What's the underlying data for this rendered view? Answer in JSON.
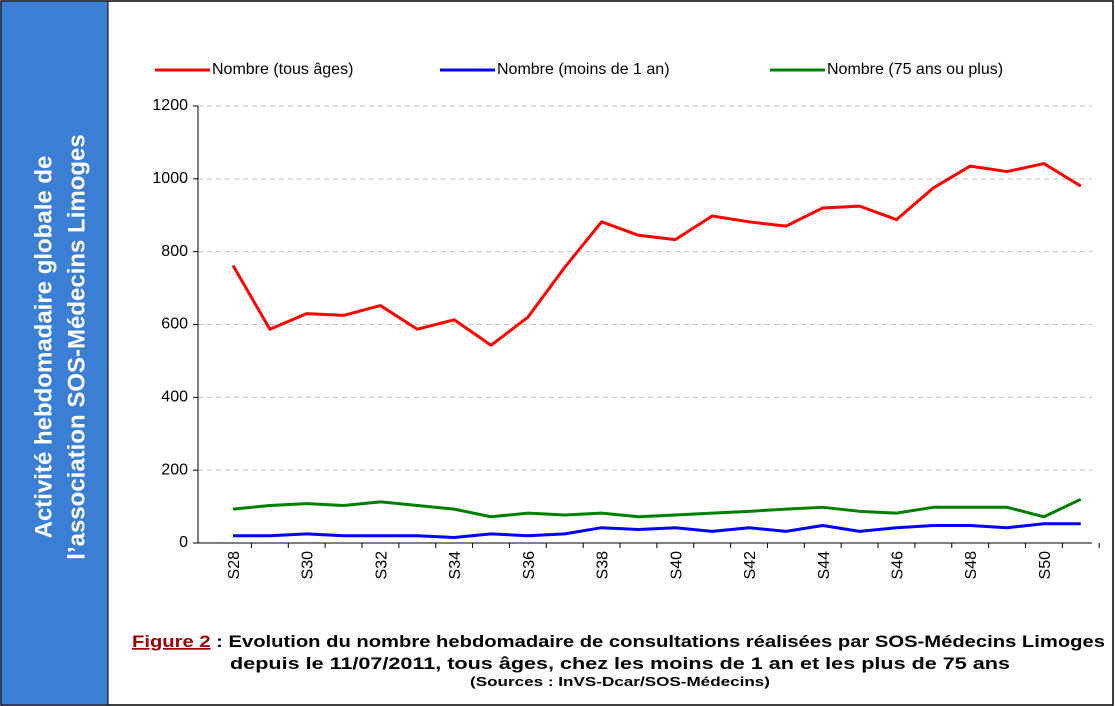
{
  "sidebar": {
    "lines": [
      "Activité hebdomadaire globale de",
      "l’association SOS-Médecins Limoges"
    ]
  },
  "chart_data": {
    "type": "line",
    "categories": [
      "S28",
      null,
      "S30",
      null,
      "S32",
      null,
      "S34",
      null,
      "S36",
      null,
      "S38",
      null,
      "S40",
      null,
      "S42",
      null,
      "S44",
      null,
      "S46",
      null,
      "S48",
      null,
      "S50",
      null
    ],
    "series": [
      {
        "name": "Nombre (tous âges)",
        "color": "#ff0000",
        "values": [
          762,
          587,
          630,
          625,
          652,
          587,
          613,
          543,
          620,
          757,
          882,
          845,
          833,
          898,
          882,
          870,
          920,
          925,
          888,
          975,
          1035,
          1020,
          1042,
          980
        ]
      },
      {
        "name": "Nombre (moins de 1 an)",
        "color": "#0000ff",
        "values": [
          20,
          20,
          25,
          20,
          20,
          20,
          15,
          25,
          20,
          25,
          42,
          37,
          42,
          32,
          42,
          32,
          48,
          32,
          42,
          48,
          48,
          42,
          53,
          53
        ]
      },
      {
        "name": "Nombre (75 ans ou plus)",
        "color": "#008000",
        "values": [
          93,
          103,
          108,
          103,
          113,
          103,
          93,
          72,
          82,
          77,
          82,
          72,
          77,
          82,
          87,
          93,
          98,
          87,
          82,
          98,
          98,
          98,
          72,
          120
        ]
      }
    ],
    "ylim": [
      0,
      1200
    ],
    "yticks": [
      0,
      200,
      400,
      600,
      800,
      1000,
      1200
    ],
    "grid": true,
    "legend": "top"
  },
  "caption": {
    "figure": "Figure 2",
    "line1": " : Evolution du nombre hebdomadaire de consultations réalisées par SOS-Médecins Limoges",
    "line2": "depuis le 11/07/2011, tous âges, chez les moins de 1 an et les plus de 75 ans",
    "source": "(Sources : InVS-Dcar/SOS-Médecins)"
  }
}
